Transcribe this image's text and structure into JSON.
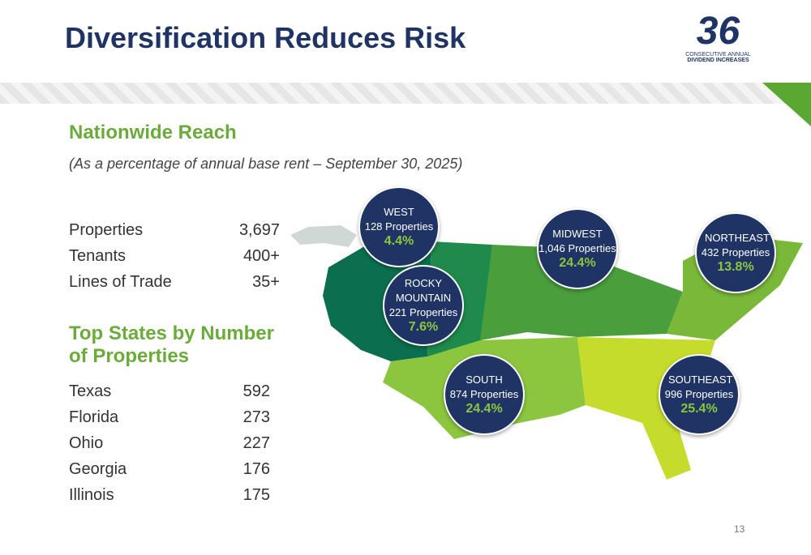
{
  "header": {
    "title": "Diversification Reduces Risk"
  },
  "logo": {
    "number": "36",
    "line1": "CONSECUTIVE ANNUAL",
    "line2": "DIVIDEND INCREASES"
  },
  "section": {
    "title": "Nationwide Reach",
    "subtitle": "(As a percentage of annual base rent – September 30, 2025)"
  },
  "stats": {
    "rows": [
      [
        "Properties",
        "3,697"
      ],
      [
        "Tenants",
        "400+"
      ],
      [
        "Lines of Trade",
        "35+"
      ]
    ]
  },
  "top_states": {
    "title": "Top States by Number of Properties",
    "rows": [
      [
        "Texas",
        "592"
      ],
      [
        "Florida",
        "273"
      ],
      [
        "Ohio",
        "227"
      ],
      [
        "Georgia",
        "176"
      ],
      [
        "Illinois",
        "175"
      ]
    ]
  },
  "regions": [
    {
      "name": "WEST",
      "properties": "128 Properties",
      "percent": "4.4%"
    },
    {
      "name": "ROCKY MOUNTAIN",
      "properties": "221 Properties",
      "percent": "7.6%"
    },
    {
      "name": "MIDWEST",
      "properties": "1,046 Properties",
      "percent": "24.4%"
    },
    {
      "name": "NORTHEAST",
      "properties": "432 Properties",
      "percent": "13.8%"
    },
    {
      "name": "SOUTH",
      "properties": "874 Properties",
      "percent": "24.4%"
    },
    {
      "name": "SOUTHEAST",
      "properties": "996 Properties",
      "percent": "25.4%"
    }
  ],
  "page_number": "13"
}
